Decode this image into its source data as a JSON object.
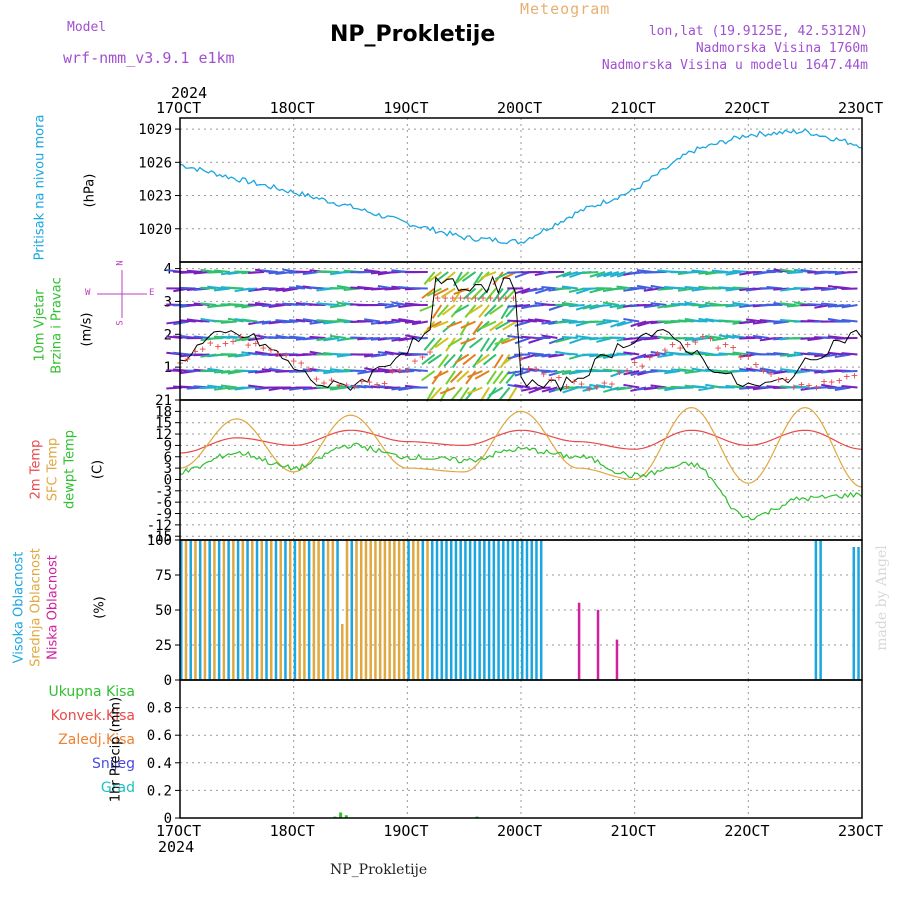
{
  "header": {
    "model_label": "Model",
    "model_name": "wrf-nmm_v3.9.1 e1km",
    "title": "NP_Prokletije",
    "subtitle": "Meteogram",
    "coords": "lon,lat (19.9125E, 42.5312N)",
    "elevation": "Nadmorska Visina 1760m",
    "model_elevation": "Nadmorska Visina u modelu 1647.44m",
    "watermark": "made by Angel",
    "footer": "NP_Prokletije"
  },
  "axis": {
    "year_top": "2024",
    "year_bottom": "2024",
    "dates": [
      "17OCT",
      "18OCT",
      "19OCT",
      "20OCT",
      "21OCT",
      "22OCT",
      "23OCT"
    ]
  },
  "panels": {
    "pressure": {
      "label": "Pritisak na nivou mora",
      "unit": "(hPa)"
    },
    "wind": {
      "label_line1": "10m Vjetar",
      "label_line2": "Brzina i Pravac",
      "unit": "(m/s)",
      "compass_n": "N",
      "compass_w": "W",
      "compass_e": "E",
      "compass_s": "S"
    },
    "temp": {
      "label1": "2m Temp",
      "label2": "SFC Temp",
      "label3": "dewpt Temp",
      "unit": "(C)"
    },
    "cloud": {
      "label1": "Visoka Oblacnost",
      "label2": "Srednja Oblacnost",
      "label3": "Niska Oblacnost",
      "unit": "(%)"
    },
    "precip": {
      "legend": [
        "Ukupna Kisa",
        "Konvek.Kisa",
        "Zaledj.Kisa",
        "Snijeg",
        "Grad"
      ],
      "unit": "1hr Precip (mm)"
    }
  },
  "colors": {
    "pressure": "#1aa6e0",
    "temp2m": "#e84a4a",
    "sfc": "#e0a840",
    "dewpt": "#30c030",
    "high_cloud": "#1aa6e0",
    "mid_cloud": "#e0a840",
    "low_cloud": "#d020a0",
    "rain": "#30c030",
    "conv": "#e84a4a",
    "frz": "#f08030",
    "snow": "#4a4ae0",
    "hail": "#20c0c0",
    "header_purple": "#a050d0"
  },
  "chart_data": [
    {
      "type": "line",
      "name": "pressure",
      "x": [
        0,
        0.5,
        1,
        1.5,
        2,
        2.5,
        3,
        3.5,
        4,
        4.5,
        5,
        5.5,
        6
      ],
      "y": [
        1025.8,
        1024.5,
        1023.3,
        1022.0,
        1020.5,
        1019.2,
        1018.8,
        1021.5,
        1023.5,
        1027.0,
        1028.5,
        1028.8,
        1027.5
      ],
      "xlabel": "",
      "ylabel": "(hPa)",
      "yticks": [
        1020,
        1023,
        1026,
        1029
      ],
      "ylim": [
        1017,
        1030
      ]
    },
    {
      "type": "line",
      "name": "wind_speed",
      "yticks": [
        1,
        2,
        3,
        4
      ],
      "ylim": [
        0,
        4.2
      ]
    },
    {
      "type": "line",
      "name": "temperature",
      "series": [
        {
          "name": "2m Temp",
          "x": [
            0,
            0.5,
            1,
            1.5,
            2,
            2.5,
            3,
            3.5,
            4,
            4.5,
            5,
            5.5,
            6
          ],
          "y": [
            7,
            11,
            9,
            13,
            10,
            9,
            13,
            10,
            8,
            13,
            9,
            13,
            8
          ]
        },
        {
          "name": "SFC Temp",
          "x": [
            0,
            0.5,
            1,
            1.5,
            2,
            2.5,
            3,
            3.5,
            4,
            4.5,
            5,
            5.5,
            6
          ],
          "y": [
            3,
            16,
            2,
            17,
            3,
            2,
            18,
            3,
            0,
            19,
            -1,
            19,
            -2
          ]
        },
        {
          "name": "dewpt Temp",
          "x": [
            0,
            0.5,
            1,
            1.5,
            2,
            2.5,
            3,
            3.5,
            4,
            4.5,
            5,
            5.5,
            6
          ],
          "y": [
            2,
            7,
            3,
            9,
            6,
            5,
            8,
            6,
            1,
            4,
            -10,
            -5,
            -4
          ]
        }
      ],
      "yticks": [
        -15,
        -12,
        -9,
        -6,
        -3,
        0,
        3,
        6,
        9,
        12,
        15,
        18,
        21
      ],
      "ylim": [
        -16,
        21
      ]
    },
    {
      "type": "bar",
      "name": "cloud_cover",
      "yticks": [
        0,
        25,
        50,
        75,
        100
      ],
      "ylim": [
        0,
        100
      ]
    },
    {
      "type": "bar",
      "name": "precipitation",
      "yticks": [
        0,
        0.2,
        0.4,
        0.6,
        0.8
      ],
      "ylim": [
        0,
        1.0
      ]
    }
  ]
}
